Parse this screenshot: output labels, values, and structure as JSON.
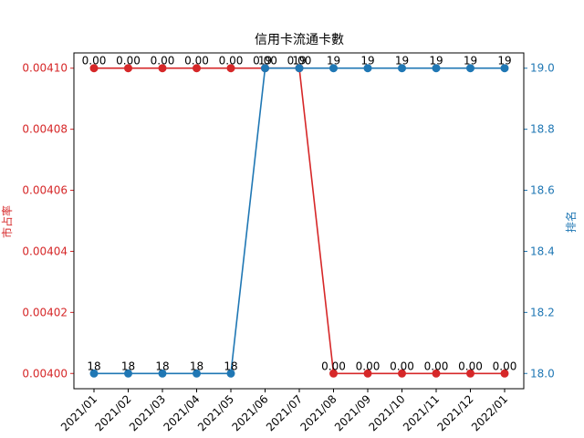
{
  "chart_data": {
    "type": "line",
    "title": "信用卡流通卡數",
    "x": [
      "2021/01",
      "2021/02",
      "2021/03",
      "2021/04",
      "2021/05",
      "2021/06",
      "2021/07",
      "2021/08",
      "2021/09",
      "2021/10",
      "2021/11",
      "2021/12",
      "2022/01"
    ],
    "left_axis": {
      "label": "市占率",
      "color": "#d62728",
      "ylim": [
        0.003995,
        0.004105
      ],
      "ticks": [
        "0.00400",
        "0.00402",
        "0.00404",
        "0.00406",
        "0.00408",
        "0.00410"
      ],
      "tick_values": [
        0.004,
        0.00402,
        0.00404,
        0.00406,
        0.00408,
        0.0041
      ]
    },
    "right_axis": {
      "label": "排名",
      "color": "#1f77b4",
      "ylim": [
        17.95,
        19.05
      ],
      "ticks": [
        "18.0",
        "18.2",
        "18.4",
        "18.6",
        "18.8",
        "19.0"
      ],
      "tick_values": [
        18.0,
        18.2,
        18.4,
        18.6,
        18.8,
        19.0
      ]
    },
    "series": [
      {
        "axis": "left",
        "color": "#d62728",
        "values": [
          0.0041,
          0.0041,
          0.0041,
          0.0041,
          0.0041,
          0.0041,
          0.0041,
          0.004,
          0.004,
          0.004,
          0.004,
          0.004,
          0.004
        ],
        "labels": [
          "0.00",
          "0.00",
          "0.00",
          "0.00",
          "0.00",
          "0.00",
          "0.00",
          "0.00",
          "0.00",
          "0.00",
          "0.00",
          "0.00",
          "0.00"
        ]
      },
      {
        "axis": "right",
        "color": "#1f77b4",
        "values": [
          18,
          18,
          18,
          18,
          18,
          19,
          19,
          19,
          19,
          19,
          19,
          19,
          19
        ],
        "labels": [
          "18",
          "18",
          "18",
          "18",
          "18",
          "19",
          "19",
          "19",
          "19",
          "19",
          "19",
          "19",
          "19"
        ]
      }
    ]
  }
}
